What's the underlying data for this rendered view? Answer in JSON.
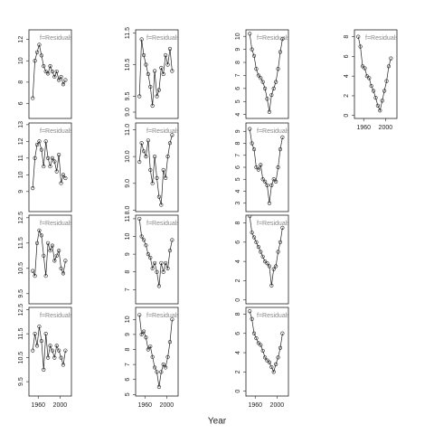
{
  "x_label": "Year",
  "chart_data": [
    {
      "type": "line",
      "annotation": "f=Residuals",
      "x": [
        1950,
        1954,
        1958,
        1962,
        1966,
        1970,
        1974,
        1978,
        1982,
        1986,
        1990,
        1994,
        1998,
        2002,
        2006,
        2010
      ],
      "values": [
        6.5,
        10,
        10.8,
        11.5,
        10.5,
        9.5,
        9,
        8.8,
        9.5,
        9,
        8.5,
        9,
        8.2,
        8.5,
        7.8,
        8.2
      ],
      "xlim": [
        1943,
        2021
      ],
      "ylim": [
        4.6,
        12.9
      ],
      "yticks": [
        6,
        8,
        10,
        12
      ]
    },
    {
      "type": "line",
      "annotation": "f=Residuals",
      "x": [
        1950,
        1954,
        1958,
        1962,
        1966,
        1970,
        1974,
        1978,
        1982,
        1986,
        1990,
        1994,
        1998,
        2002,
        2006,
        2010
      ],
      "values": [
        9.5,
        11.3,
        10.8,
        10.5,
        10.2,
        9.8,
        9.2,
        10.3,
        9.5,
        9.7,
        10.4,
        10.2,
        10.8,
        10.5,
        11,
        10.3
      ],
      "xlim": [
        1943,
        2021
      ],
      "ylim": [
        8.8,
        11.6
      ],
      "yticks": [
        {
          "value": 9,
          "label": "9.0"
        },
        9.5,
        10.5,
        11.5
      ]
    },
    {
      "type": "line",
      "annotation": "f=Residuals",
      "x": [
        1950,
        1954,
        1958,
        1962,
        1966,
        1970,
        1974,
        1978,
        1982,
        1986,
        1990,
        1994,
        1998,
        2002,
        2006,
        2010
      ],
      "values": [
        10.2,
        9,
        8.5,
        7.5,
        7,
        6.8,
        6.5,
        6,
        5.2,
        4.2,
        5.5,
        6,
        6.5,
        7.5,
        8.8,
        9.8
      ],
      "xlim": [
        1943,
        2021
      ],
      "ylim": [
        3.7,
        10.5
      ],
      "yticks": [
        4,
        5,
        6,
        7,
        8,
        9,
        10
      ]
    },
    {
      "type": "line",
      "annotation": "f=Residuals",
      "x": [
        1950,
        1954,
        1958,
        1962,
        1966,
        1970,
        1974,
        1978,
        1982,
        1986,
        1990,
        1994,
        1998,
        2002,
        2006,
        2010
      ],
      "values": [
        8,
        7,
        5,
        4.8,
        4,
        3.8,
        3,
        2.5,
        1.8,
        1,
        0.5,
        1.5,
        2.5,
        3.5,
        5,
        5.8
      ],
      "xlim": [
        1943,
        2021
      ],
      "ylim": [
        -0.3,
        8.7
      ],
      "yticks": [
        0,
        2,
        4,
        6,
        8
      ],
      "xticks": [
        1960,
        2000
      ]
    },
    {
      "type": "line",
      "annotation": "f=Residuals",
      "x": [
        1950,
        1954,
        1958,
        1962,
        1966,
        1970,
        1974,
        1978,
        1982,
        1986,
        1990,
        1994,
        1998,
        2002,
        2006,
        2010
      ],
      "values": [
        9.2,
        11,
        11.8,
        12,
        11.5,
        10.5,
        12,
        11,
        10.5,
        11,
        10.8,
        10.2,
        11.2,
        9.5,
        10,
        9.8
      ],
      "xlim": [
        1943,
        2021
      ],
      "ylim": [
        7.8,
        13.1
      ],
      "yticks": [
        9,
        10,
        11,
        12,
        13
      ]
    },
    {
      "type": "line",
      "annotation": "f=Residuals",
      "x": [
        1950,
        1954,
        1958,
        1962,
        1966,
        1970,
        1974,
        1978,
        1982,
        1986,
        1990,
        1994,
        1998,
        2002,
        2006,
        2010
      ],
      "values": [
        9.8,
        10.5,
        10.2,
        10,
        10.6,
        9.5,
        9,
        10,
        9.2,
        8.5,
        8.2,
        9.5,
        9.2,
        10,
        10.5,
        10.8
      ],
      "xlim": [
        1943,
        2021
      ],
      "ylim": [
        7.95,
        11.25
      ],
      "yticks": [
        {
          "value": 8,
          "label": "8.0"
        },
        {
          "value": 9,
          "label": "9.0"
        },
        {
          "value": 10,
          "label": "10.0"
        },
        {
          "value": 11,
          "label": "11.0"
        }
      ]
    },
    {
      "type": "line",
      "annotation": "f=Residuals",
      "x": [
        1950,
        1954,
        1958,
        1962,
        1966,
        1970,
        1974,
        1978,
        1982,
        1986,
        1990,
        1994,
        1998,
        2002,
        2006,
        2010
      ],
      "values": [
        9.2,
        8,
        7.5,
        6,
        5.8,
        6.2,
        5,
        4.8,
        4.5,
        3,
        4.5,
        5,
        4.8,
        6,
        7.5,
        8.5
      ],
      "xlim": [
        1943,
        2021
      ],
      "ylim": [
        2.3,
        9.7
      ],
      "yticks": [
        3,
        4,
        5,
        6,
        7,
        8,
        9
      ]
    },
    {
      "type": "line",
      "annotation": "f=Residuals",
      "x": [
        1950,
        1954,
        1958,
        1962,
        1966,
        1970,
        1974,
        1978,
        1982,
        1986,
        1990,
        1994,
        1998,
        2002,
        2006,
        2010
      ],
      "values": [
        10.4,
        10.2,
        11.5,
        12,
        11.8,
        11,
        10.2,
        11.5,
        11.2,
        11.4,
        10.8,
        11,
        11.2,
        10.5,
        10.3,
        10.8
      ],
      "xlim": [
        1943,
        2021
      ],
      "ylim": [
        9.1,
        12.6
      ],
      "yticks": [
        9.5,
        10.5,
        11.5,
        12.5
      ]
    },
    {
      "type": "line",
      "annotation": "f=Residuals",
      "x": [
        1950,
        1954,
        1958,
        1962,
        1966,
        1970,
        1974,
        1978,
        1982,
        1986,
        1990,
        1994,
        1998,
        2002,
        2006,
        2010
      ],
      "values": [
        11,
        10,
        9.8,
        9.5,
        9,
        8.8,
        8.2,
        8.5,
        8,
        7.2,
        8.5,
        8,
        8.5,
        8.2,
        9.2,
        9.8
      ],
      "xlim": [
        1943,
        2021
      ],
      "ylim": [
        6.2,
        11.2
      ],
      "yticks": [
        7,
        8,
        9,
        10,
        11
      ]
    },
    {
      "type": "line",
      "annotation": "f=Residuals",
      "x": [
        1950,
        1954,
        1958,
        1962,
        1966,
        1970,
        1974,
        1978,
        1982,
        1986,
        1990,
        1994,
        1998,
        2002,
        2006,
        2010
      ],
      "values": [
        8.7,
        7,
        6.5,
        6,
        5.5,
        5,
        4.5,
        4,
        3.8,
        3.5,
        1.5,
        3.2,
        3.5,
        5,
        6,
        7.5
      ],
      "xlim": [
        1943,
        2021
      ],
      "ylim": [
        -0.4,
        8.8
      ],
      "yticks": [
        0,
        2,
        4,
        6,
        8
      ]
    },
    {
      "type": "line",
      "annotation": "f=Residuals",
      "x": [
        1950,
        1954,
        1958,
        1962,
        1966,
        1970,
        1974,
        1978,
        1982,
        1986,
        1990,
        1994,
        1998,
        2002,
        2006,
        2010
      ],
      "values": [
        10.8,
        11.5,
        11,
        11.8,
        11.2,
        10,
        11.5,
        10.5,
        11,
        10.8,
        10.5,
        11,
        10.8,
        10.5,
        10.2,
        10.8
      ],
      "xlim": [
        1943,
        2021
      ],
      "ylim": [
        8.9,
        12.6
      ],
      "yticks": [
        9.5,
        10.5,
        11.5,
        12.5
      ],
      "xticks": [
        1960,
        2000
      ]
    },
    {
      "type": "line",
      "annotation": "f=Residuals",
      "x": [
        1950,
        1954,
        1958,
        1962,
        1966,
        1970,
        1974,
        1978,
        1982,
        1986,
        1990,
        1994,
        1998,
        2002,
        2006,
        2010
      ],
      "values": [
        10.3,
        9,
        9.2,
        8.8,
        8,
        8.2,
        7.5,
        6.8,
        6.5,
        5.5,
        6.5,
        7,
        6.8,
        7.5,
        8.5,
        10
      ],
      "xlim": [
        1943,
        2021
      ],
      "ylim": [
        4.9,
        10.8
      ],
      "yticks": [
        5,
        6,
        7,
        8,
        9,
        10
      ],
      "xticks": [
        1960,
        2000
      ]
    },
    {
      "type": "line",
      "annotation": "f=Residuals",
      "x": [
        1950,
        1954,
        1958,
        1962,
        1966,
        1970,
        1974,
        1978,
        1982,
        1986,
        1990,
        1994,
        1998,
        2002,
        2006,
        2010
      ],
      "values": [
        8.3,
        7.5,
        6,
        5.5,
        5,
        4.8,
        4.2,
        3.5,
        3.2,
        3,
        2.5,
        2,
        2.8,
        3.5,
        4.5,
        6
      ],
      "xlim": [
        1943,
        2021
      ],
      "ylim": [
        -0.5,
        8.7
      ],
      "yticks": [
        0,
        2,
        4,
        6,
        8
      ],
      "xticks": [
        1960,
        2000
      ]
    }
  ]
}
